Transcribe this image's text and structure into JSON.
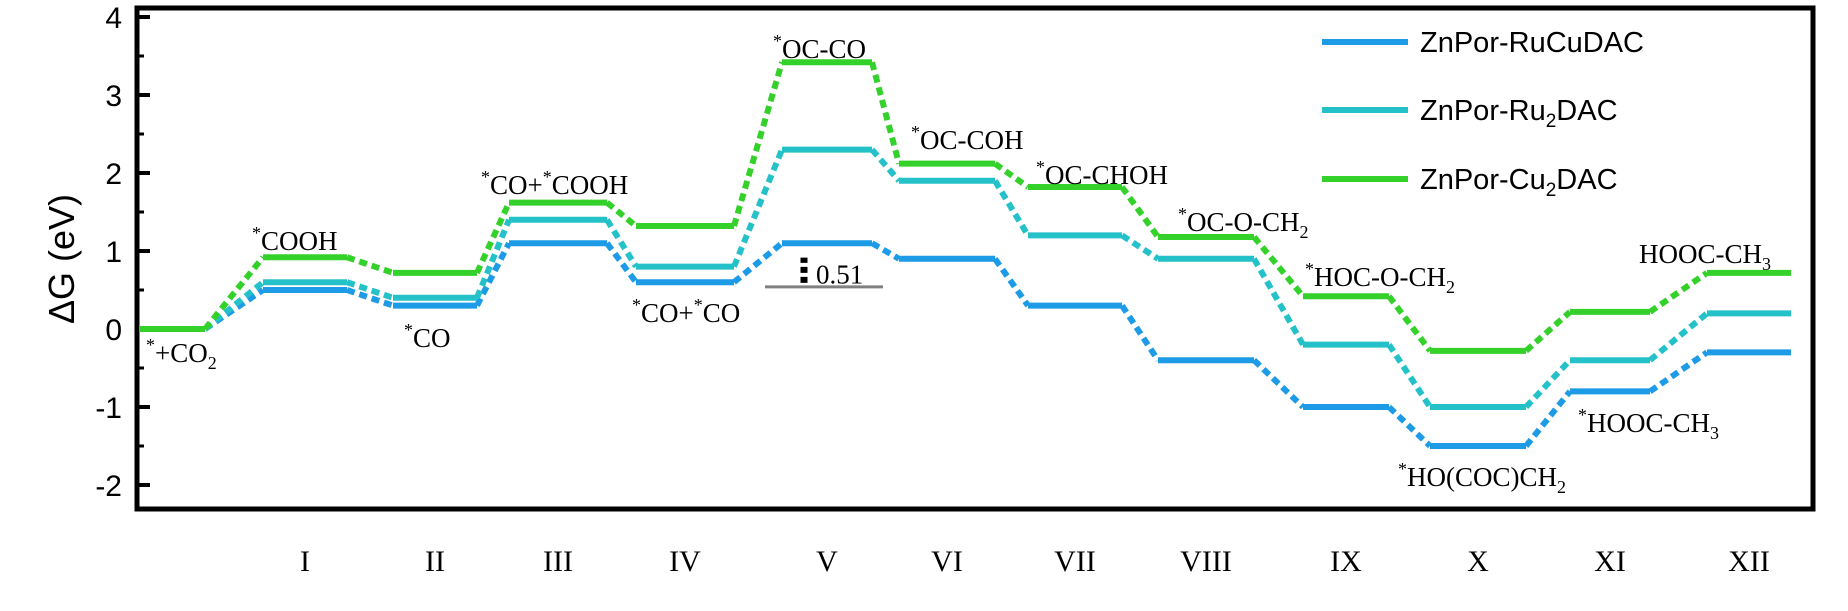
{
  "chart_data": {
    "type": "line",
    "ylabel": "ΔG (eV)",
    "xlabel": "",
    "ylim": [
      -2.3,
      4.2
    ],
    "yticks": [
      -2,
      -1,
      0,
      1,
      2,
      3,
      4
    ],
    "categories": [
      "",
      "I",
      "II",
      "III",
      "IV",
      "V",
      "VI",
      "VII",
      "VIII",
      "IX",
      "X",
      "XI",
      "XII"
    ],
    "series": [
      {
        "name": "ZnPor-RuCuDAC",
        "color": "#1e9be6",
        "values": [
          0,
          0.5,
          0.3,
          1.1,
          0.6,
          1.1,
          0.9,
          0.3,
          -0.4,
          -1.0,
          -1.5,
          -0.8,
          -0.3
        ]
      },
      {
        "name": "ZnPor-Ru2DAC",
        "color": "#25c1c8",
        "values": [
          0,
          0.6,
          0.4,
          1.4,
          0.8,
          2.3,
          1.9,
          1.2,
          0.9,
          -0.2,
          -1.0,
          -0.4,
          0.2
        ]
      },
      {
        "name": "ZnPor-Cu2DAC",
        "color": "#35d12b",
        "values": [
          0,
          0.92,
          0.72,
          1.62,
          1.32,
          3.42,
          2.12,
          1.82,
          1.18,
          0.42,
          -0.28,
          0.22,
          0.72
        ]
      }
    ],
    "legend_position": "top-right",
    "grid": false,
    "step_labels": [
      {
        "step": 0,
        "sup": "*",
        "text": "+CO",
        "sub": "2",
        "tail": ""
      },
      {
        "step": 1,
        "sup": "*",
        "text": "COOH",
        "sub": "",
        "tail": ""
      },
      {
        "step": 2,
        "sup": "*",
        "text": "CO",
        "sub": "",
        "tail": ""
      },
      {
        "step": 3,
        "sup": "*",
        "text": "CO+",
        "sup2": "*",
        "text2": "COOH",
        "sub": "",
        "tail": ""
      },
      {
        "step": 4,
        "sup": "*",
        "text": "CO+",
        "sup2": "*",
        "text2": "CO",
        "sub": "",
        "tail": ""
      },
      {
        "step": 5,
        "sup": "*",
        "text": "OC-CO",
        "sub": "",
        "tail": ""
      },
      {
        "step": 6,
        "sup": "*",
        "text": "OC-COH",
        "sub": "",
        "tail": ""
      },
      {
        "step": 7,
        "sup": "*",
        "text": "OC-CHOH",
        "sub": "",
        "tail": ""
      },
      {
        "step": 8,
        "sup": "*",
        "text": "OC-O-CH",
        "sub": "2",
        "tail": ""
      },
      {
        "step": 9,
        "sup": "*",
        "text": "HOC-O-CH",
        "sub": "2",
        "tail": ""
      },
      {
        "step": 10,
        "sup": "*",
        "text": "HO(COC)CH",
        "sub": "2",
        "tail": ""
      },
      {
        "step": 11,
        "sup": "*",
        "text": "HOOC-CH",
        "sub": "3",
        "tail": ""
      },
      {
        "step": 12,
        "sup": "",
        "text": "HOOC-CH",
        "sub": "3",
        "tail": ""
      }
    ],
    "annotation": {
      "text": "0.51",
      "step": 5
    }
  }
}
